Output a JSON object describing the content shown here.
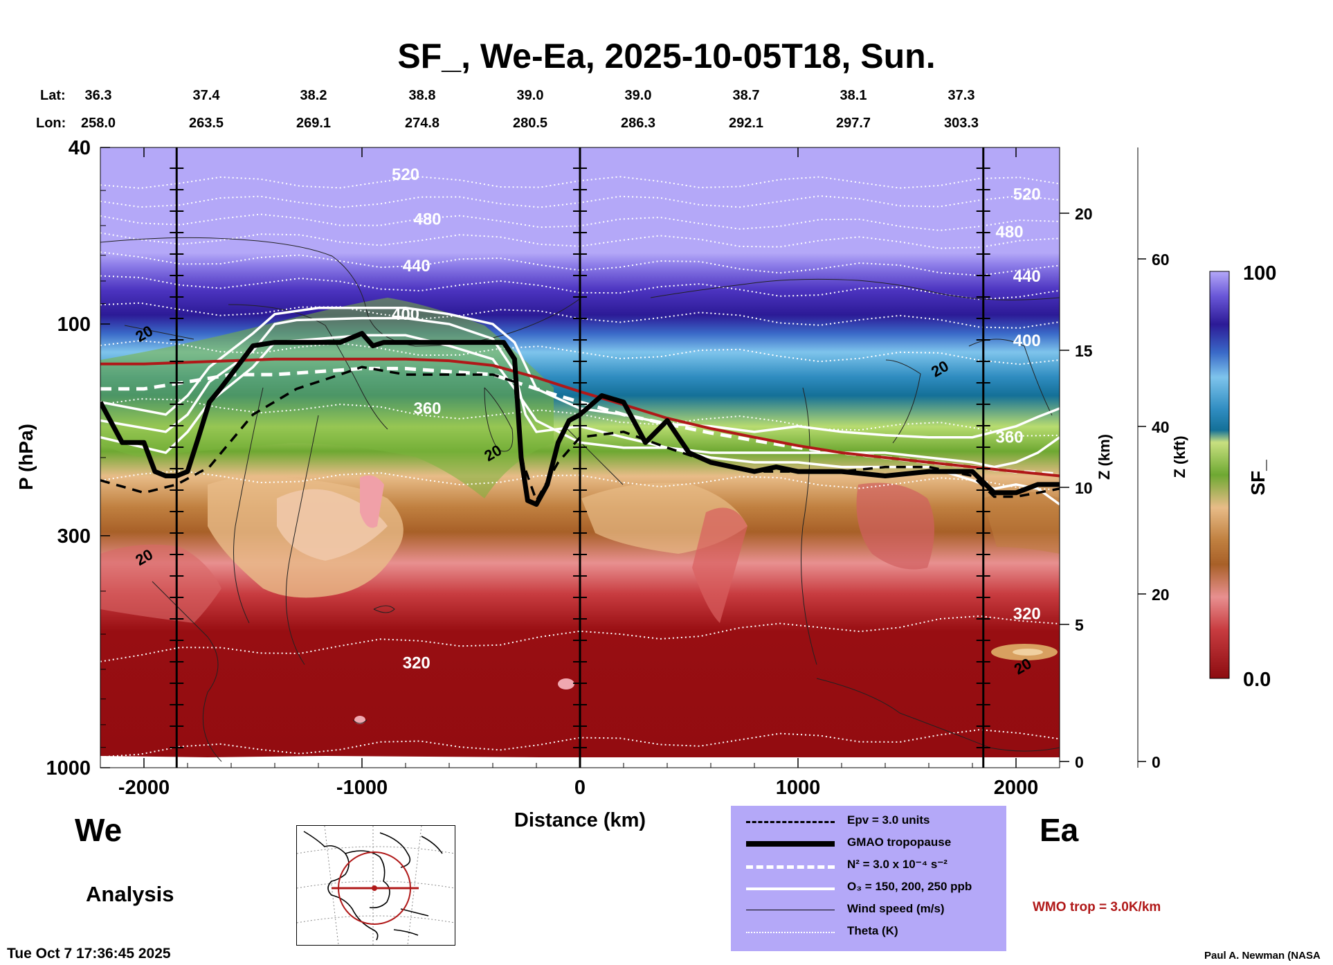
{
  "title": "SF_, We-Ea, 2025-10-05T18, Sun.",
  "lat_label": "Lat:",
  "lon_label": "Lon:",
  "lat_values": [
    "36.3",
    "37.4",
    "38.2",
    "38.8",
    "39.0",
    "39.0",
    "38.7",
    "38.1",
    "37.3"
  ],
  "lon_values": [
    "258.0",
    "263.5",
    "269.1",
    "274.8",
    "280.5",
    "286.3",
    "292.1",
    "297.7",
    "303.3"
  ],
  "left_end_label": "We",
  "right_end_label": "Ea",
  "analysis_label": "Analysis",
  "timestamp": "Tue Oct  7 17:36:45 2025",
  "credit": "Paul A. Newman (NASA",
  "wmo_note": "WMO trop = 3.0K/km",
  "legend": {
    "epv": "Epv = 3.0 units",
    "tropopause": "GMAO tropopause",
    "n2": "N² = 3.0 x 10⁻⁴ s⁻²",
    "o3": "O₃ = 150, 200, 250 ppb",
    "wind": "Wind speed (m/s)",
    "theta": "Theta (K)"
  },
  "colors": {
    "tropopause_wmo": "#b01818",
    "legend_bg": "#b4a8f8",
    "colorbar_top": "#b4a8f8",
    "colorbar_bottom": "#8c0c10"
  },
  "chart_data": {
    "type": "heatmap",
    "variable": "SF_",
    "xlabel": "Distance (km)",
    "ylabel": "P (hPa)",
    "ylabel_right_km": "Z (km)",
    "ylabel_right_kft": "Z (kft)",
    "colorbar_label": "SF_",
    "xlim": [
      -2200,
      2200
    ],
    "ylim": [
      1000,
      40
    ],
    "y_scale": "log",
    "x_ticks": [
      -2000,
      -1000,
      0,
      1000,
      2000
    ],
    "y_ticks": [
      40,
      100,
      300,
      1000
    ],
    "z_km_ticks": [
      0,
      5,
      10,
      15,
      20
    ],
    "z_kft_ticks": [
      0,
      20,
      40,
      60
    ],
    "colorbar_range": [
      0.0,
      100
    ],
    "colorbar_tick_labels": [
      "100",
      "0.0"
    ],
    "vertical_reference_lines_km": [
      -1850,
      0,
      1850
    ],
    "theta_labels": [
      {
        "value": 520,
        "x": -800,
        "p": 46
      },
      {
        "value": 480,
        "x": -700,
        "p": 58
      },
      {
        "value": 440,
        "x": -750,
        "p": 74
      },
      {
        "value": 400,
        "x": -800,
        "p": 95
      },
      {
        "value": 360,
        "x": -700,
        "p": 155
      },
      {
        "value": 320,
        "x": -750,
        "p": 580
      },
      {
        "value": 520,
        "x": 2050,
        "p": 51
      },
      {
        "value": 480,
        "x": 1970,
        "p": 62
      },
      {
        "value": 440,
        "x": 2050,
        "p": 78
      },
      {
        "value": 400,
        "x": 2050,
        "p": 109
      },
      {
        "value": 360,
        "x": 1970,
        "p": 180
      },
      {
        "value": 320,
        "x": 2050,
        "p": 450
      }
    ],
    "wind_labels": [
      {
        "value": 20,
        "x": -2000,
        "p": 105
      },
      {
        "value": 20,
        "x": -400,
        "p": 195
      },
      {
        "value": 20,
        "x": -2000,
        "p": 335
      },
      {
        "value": 20,
        "x": 1650,
        "p": 126
      },
      {
        "value": 20,
        "x": 2030,
        "p": 590
      }
    ],
    "gmao_tropopause": {
      "x": [
        -2200,
        -2100,
        -2000,
        -1950,
        -1900,
        -1850,
        -1800,
        -1750,
        -1700,
        -1650,
        -1600,
        -1500,
        -1400,
        -1300,
        -1200,
        -1100,
        -1000,
        -950,
        -900,
        -800,
        -700,
        -600,
        -500,
        -400,
        -350,
        -300,
        -270,
        -240,
        -200,
        -150,
        -100,
        -50,
        0,
        100,
        200,
        300,
        400,
        500,
        600,
        700,
        800,
        900,
        1000,
        1200,
        1400,
        1600,
        1800,
        1900,
        2000,
        2100,
        2200
      ],
      "p": [
        150,
        185,
        185,
        215,
        220,
        220,
        215,
        180,
        150,
        140,
        130,
        112,
        110,
        110,
        110,
        110,
        105,
        112,
        110,
        110,
        110,
        110,
        110,
        110,
        110,
        120,
        200,
        250,
        255,
        230,
        185,
        165,
        160,
        145,
        150,
        185,
        165,
        195,
        205,
        210,
        215,
        210,
        215,
        215,
        220,
        215,
        215,
        240,
        240,
        230,
        230
      ]
    },
    "epv_3": {
      "x": [
        -2200,
        -2000,
        -1850,
        -1700,
        -1500,
        -1300,
        -1100,
        -1000,
        -800,
        -600,
        -400,
        -300,
        -270,
        -200,
        -100,
        0,
        200,
        400,
        600,
        800,
        1000,
        1200,
        1400,
        1600,
        1800,
        1900,
        2000,
        2100,
        2200
      ],
      "p": [
        225,
        240,
        230,
        210,
        160,
        140,
        130,
        125,
        130,
        130,
        130,
        135,
        200,
        250,
        205,
        180,
        175,
        190,
        205,
        215,
        215,
        215,
        210,
        210,
        220,
        245,
        245,
        240,
        235
      ]
    },
    "n2_line": {
      "x": [
        -2200,
        -2000,
        -1800,
        -1600,
        -1400,
        -1200,
        -1000,
        -800,
        -600,
        -400,
        -300,
        -200,
        -100,
        0,
        200,
        400,
        600,
        800,
        1000,
        1200,
        1400,
        1600,
        1800,
        2000,
        2200
      ],
      "p": [
        140,
        140,
        135,
        130,
        130,
        128,
        126,
        126,
        128,
        130,
        135,
        140,
        145,
        150,
        160,
        168,
        176,
        183,
        190,
        195,
        200,
        205,
        210,
        215,
        218
      ]
    },
    "wmo_tropopause": {
      "x": [
        -2200,
        -2000,
        -1800,
        -1600,
        -1400,
        -1200,
        -1000,
        -800,
        -600,
        -400,
        -200,
        0,
        200,
        400,
        600,
        800,
        1000,
        1200,
        1400,
        1600,
        1800,
        2000,
        2200
      ],
      "p": [
        123,
        123,
        122,
        121,
        120,
        120,
        120,
        120,
        121,
        124,
        132,
        142,
        152,
        163,
        172,
        180,
        188,
        195,
        200,
        205,
        210,
        215,
        220
      ]
    },
    "o3_contours": [
      {
        "level": 150,
        "x": [
          -2200,
          -1900,
          -1800,
          -1700,
          -1500,
          -1400,
          -1300,
          -1000,
          -800,
          -600,
          -400,
          -300,
          -250,
          -200,
          0,
          200,
          400,
          600,
          800,
          1000,
          1200,
          1400,
          1600,
          1800,
          1900,
          2000,
          2100,
          2200
        ],
        "p": [
          165,
          175,
          160,
          135,
          115,
          100,
          98,
          97,
          97,
          100,
          108,
          128,
          160,
          175,
          170,
          180,
          190,
          200,
          205,
          205,
          210,
          210,
          210,
          225,
          235,
          230,
          235,
          255
        ]
      },
      {
        "level": 200,
        "x": [
          -2200,
          -1900,
          -1800,
          -1700,
          -1500,
          -1400,
          -1200,
          -1000,
          -800,
          -600,
          -400,
          -300,
          -200,
          0,
          200,
          400,
          600,
          800,
          1000,
          1200,
          1400,
          1600,
          1800,
          1900,
          2000,
          2100,
          2200
        ],
        "p": [
          180,
          195,
          175,
          150,
          125,
          110,
          108,
          106,
          106,
          112,
          120,
          140,
          165,
          185,
          190,
          190,
          195,
          195,
          195,
          195,
          195,
          200,
          205,
          210,
          205,
          195,
          180
        ]
      },
      {
        "level": 250,
        "x": [
          -2200,
          -1900,
          -1800,
          -1700,
          -1500,
          -1400,
          -1200,
          -1000,
          -800,
          -600,
          -400,
          -300,
          -200,
          0,
          200,
          400,
          600,
          800,
          1000,
          1200,
          1400,
          1600,
          1800,
          1900,
          2000,
          2100,
          2200
        ],
        "p": [
          150,
          160,
          145,
          125,
          105,
          95,
          92,
          92,
          92,
          95,
          100,
          110,
          140,
          155,
          160,
          168,
          170,
          175,
          170,
          175,
          178,
          180,
          180,
          175,
          170,
          162,
          155
        ]
      }
    ],
    "theta_contours": [
      {
        "value": 520,
        "p": [
          48,
          48
        ]
      },
      {
        "value": 500,
        "p": [
          53,
          53
        ]
      },
      {
        "value": 480,
        "p": [
          58,
          60
        ]
      },
      {
        "value": 460,
        "p": [
          64,
          66
        ]
      },
      {
        "value": 440,
        "p": [
          71,
          76
        ]
      },
      {
        "value": 420,
        "p": [
          80,
          86
        ]
      },
      {
        "value": 400,
        "p": [
          92,
          100
        ]
      },
      {
        "value": 380,
        "p": [
          112,
          120
        ]
      },
      {
        "value": 360,
        "p": [
          150,
          175
        ]
      },
      {
        "value": 340,
        "p": [
          220,
          230
        ]
      },
      {
        "value": 320,
        "p": [
          560,
          460
        ]
      },
      {
        "value": 300,
        "p": [
          920,
          840
        ]
      }
    ]
  }
}
